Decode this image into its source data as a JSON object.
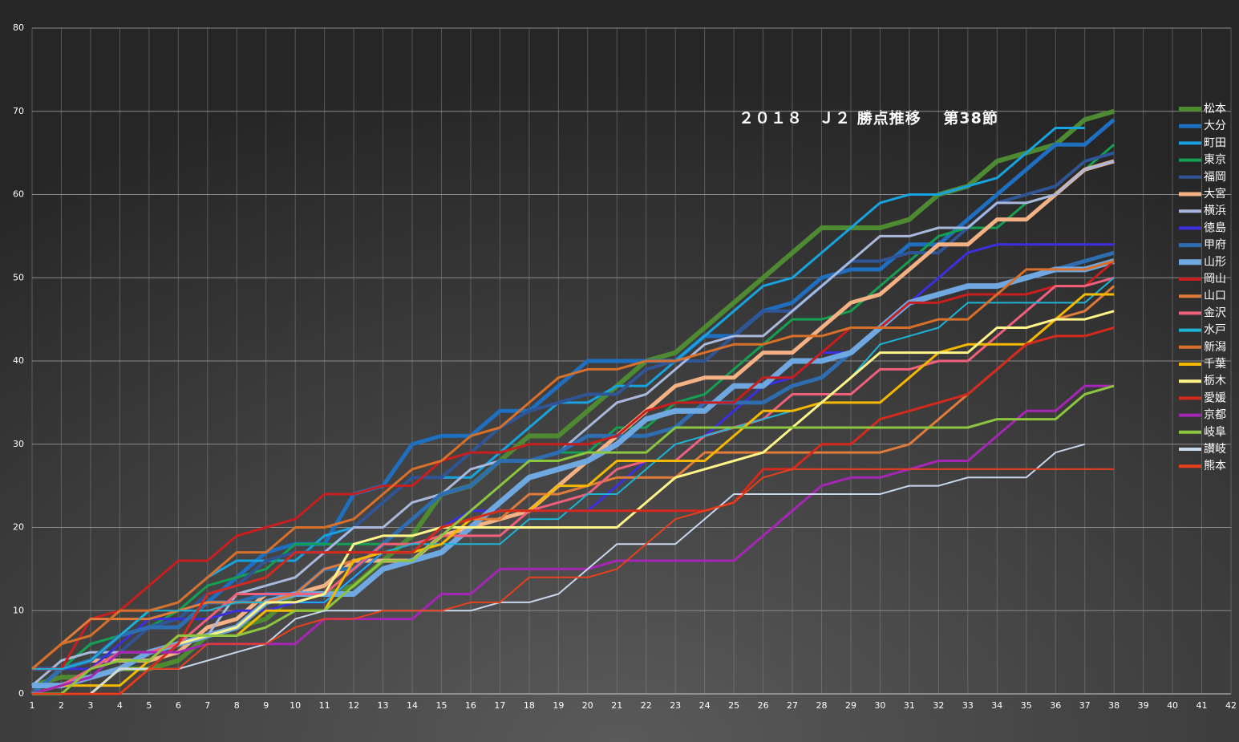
{
  "chart_data": {
    "type": "line",
    "title": "２０１８　Ｊ２ 勝点推移　 第38節",
    "x": [
      1,
      2,
      3,
      4,
      5,
      6,
      7,
      8,
      9,
      10,
      11,
      12,
      13,
      14,
      15,
      16,
      17,
      18,
      19,
      20,
      21,
      22,
      23,
      24,
      25,
      26,
      27,
      28,
      29,
      30,
      31,
      32,
      33,
      34,
      35,
      36,
      37,
      38
    ],
    "xlim": [
      1,
      42
    ],
    "xticks": [
      1,
      2,
      3,
      4,
      5,
      6,
      7,
      8,
      9,
      10,
      11,
      12,
      13,
      14,
      15,
      16,
      17,
      18,
      19,
      20,
      21,
      22,
      23,
      24,
      25,
      26,
      27,
      28,
      29,
      30,
      31,
      32,
      33,
      34,
      35,
      36,
      37,
      38,
      39,
      40,
      41,
      42
    ],
    "ylim": [
      0,
      80
    ],
    "yticks": [
      0,
      10,
      20,
      30,
      40,
      50,
      60,
      70,
      80
    ],
    "grid": true,
    "series": [
      {
        "name": "松本",
        "color": "#4e8a32",
        "width": 6,
        "values": [
          1,
          2,
          2,
          3,
          3,
          4,
          7,
          8,
          9,
          12,
          12,
          13,
          16,
          19,
          24,
          25,
          28,
          31,
          31,
          34,
          37,
          40,
          41,
          44,
          47,
          50,
          53,
          56,
          56,
          56,
          57,
          60,
          61,
          64,
          65,
          66,
          69,
          70
        ]
      },
      {
        "name": "大分",
        "color": "#1f6fc0",
        "width": 5,
        "values": [
          3,
          3,
          4,
          7,
          8,
          8,
          11,
          14,
          17,
          18,
          18,
          24,
          25,
          30,
          31,
          31,
          34,
          34,
          37,
          40,
          40,
          40,
          40,
          43,
          43,
          46,
          47,
          50,
          51,
          51,
          54,
          54,
          57,
          60,
          63,
          66,
          66,
          69
        ]
      },
      {
        "name": "町田",
        "color": "#17a3e0",
        "width": 3,
        "values": [
          0,
          3,
          6,
          7,
          10,
          11,
          14,
          16,
          16,
          16,
          19,
          20,
          23,
          26,
          26,
          26,
          29,
          32,
          35,
          35,
          37,
          37,
          40,
          43,
          46,
          49,
          50,
          53,
          56,
          59,
          60,
          60,
          61,
          62,
          65,
          68,
          68,
          null
        ]
      },
      {
        "name": "東京",
        "color": "#14a050",
        "width": 3,
        "values": [
          0,
          3,
          6,
          7,
          8,
          10,
          13,
          14,
          15,
          18,
          18,
          18,
          18,
          21,
          24,
          25,
          28,
          28,
          29,
          29,
          32,
          32,
          35,
          36,
          39,
          42,
          45,
          45,
          46,
          49,
          52,
          55,
          56,
          56,
          59,
          60,
          63,
          66
        ]
      },
      {
        "name": "福岡",
        "color": "#2f5597",
        "width": 4,
        "values": [
          3,
          3,
          4,
          5,
          8,
          9,
          12,
          13,
          16,
          17,
          17,
          20,
          23,
          26,
          26,
          29,
          32,
          34,
          35,
          36,
          36,
          39,
          40,
          40,
          43,
          46,
          46,
          49,
          52,
          52,
          53,
          53,
          56,
          59,
          60,
          61,
          64,
          65
        ]
      },
      {
        "name": "大宮",
        "color": "#f4b183",
        "width": 5,
        "values": [
          0,
          3,
          4,
          4,
          4,
          5,
          8,
          9,
          12,
          12,
          13,
          16,
          16,
          16,
          19,
          20,
          21,
          22,
          25,
          28,
          31,
          34,
          37,
          38,
          38,
          41,
          41,
          44,
          47,
          48,
          51,
          54,
          54,
          57,
          57,
          60,
          63,
          64
        ]
      },
      {
        "name": "横浜",
        "color": "#a9b8dc",
        "width": 3,
        "values": [
          1,
          4,
          5,
          5,
          5,
          6,
          7,
          12,
          13,
          14,
          17,
          20,
          20,
          23,
          24,
          27,
          28,
          28,
          29,
          32,
          35,
          36,
          39,
          42,
          43,
          43,
          46,
          49,
          52,
          55,
          55,
          56,
          56,
          59,
          59,
          60,
          63,
          64
        ]
      },
      {
        "name": "徳島",
        "color": "#3b2fe0",
        "width": 3,
        "values": [
          3,
          3,
          3,
          6,
          9,
          9,
          9,
          10,
          10,
          11,
          11,
          14,
          17,
          17,
          20,
          22,
          22,
          22,
          22,
          22,
          25,
          28,
          28,
          31,
          34,
          37,
          38,
          41,
          41,
          44,
          47,
          50,
          53,
          54,
          54,
          54,
          54,
          54
        ]
      },
      {
        "name": "甲府",
        "color": "#2e6db0",
        "width": 5,
        "values": [
          0,
          3,
          4,
          7,
          8,
          8,
          11,
          11,
          12,
          12,
          15,
          15,
          18,
          21,
          24,
          25,
          28,
          28,
          29,
          31,
          31,
          31,
          32,
          35,
          35,
          35,
          37,
          38,
          41,
          44,
          47,
          48,
          49,
          49,
          50,
          51,
          52,
          53
        ]
      },
      {
        "name": "山形",
        "color": "#6fa8e0",
        "width": 7,
        "values": [
          1,
          1,
          2,
          3,
          5,
          6,
          7,
          8,
          11,
          12,
          12,
          12,
          15,
          16,
          17,
          20,
          23,
          26,
          27,
          28,
          30,
          33,
          34,
          34,
          37,
          37,
          40,
          40,
          41,
          44,
          47,
          48,
          49,
          49,
          50,
          51,
          51,
          52
        ]
      },
      {
        "name": "岡山",
        "color": "#c81e1e",
        "width": 3,
        "values": [
          3,
          3,
          9,
          10,
          13,
          16,
          16,
          19,
          20,
          21,
          24,
          24,
          25,
          25,
          28,
          29,
          29,
          30,
          30,
          30,
          31,
          34,
          35,
          35,
          35,
          38,
          38,
          41,
          44,
          44,
          47,
          47,
          48,
          48,
          48,
          49,
          49,
          52
        ]
      },
      {
        "name": "山口",
        "color": "#e07b39",
        "width": 3,
        "values": [
          3,
          6,
          9,
          9,
          9,
          10,
          11,
          11,
          11,
          12,
          15,
          16,
          17,
          17,
          20,
          21,
          21,
          24,
          24,
          25,
          26,
          26,
          26,
          29,
          29,
          29,
          29,
          29,
          29,
          29,
          30,
          33,
          36,
          39,
          42,
          45,
          46,
          49
        ]
      },
      {
        "name": "金沢",
        "color": "#f0607a",
        "width": 3,
        "values": [
          0,
          1,
          3,
          5,
          5,
          6,
          9,
          12,
          12,
          12,
          12,
          15,
          18,
          18,
          19,
          19,
          19,
          22,
          23,
          24,
          27,
          28,
          28,
          31,
          32,
          33,
          36,
          36,
          36,
          39,
          39,
          40,
          40,
          43,
          46,
          49,
          49,
          50
        ]
      },
      {
        "name": "水戸",
        "color": "#1cb5d8",
        "width": 2,
        "values": [
          3,
          3,
          4,
          7,
          10,
          10,
          10,
          11,
          11,
          11,
          11,
          14,
          17,
          18,
          18,
          18,
          18,
          21,
          21,
          24,
          24,
          27,
          30,
          31,
          32,
          33,
          34,
          35,
          38,
          42,
          43,
          44,
          47,
          47,
          47,
          47,
          47,
          50
        ]
      },
      {
        "name": "新潟",
        "color": "#d9702a",
        "width": 3,
        "values": [
          3,
          6,
          7,
          10,
          10,
          11,
          14,
          17,
          17,
          20,
          20,
          21,
          24,
          27,
          28,
          31,
          32,
          35,
          38,
          39,
          39,
          40,
          40,
          41,
          42,
          42,
          43,
          43,
          44,
          44,
          44,
          45,
          45,
          48,
          51,
          51,
          51,
          52
        ]
      },
      {
        "name": "千葉",
        "color": "#f5b800",
        "width": 3,
        "values": [
          0,
          1,
          1,
          1,
          4,
          7,
          7,
          7,
          10,
          10,
          10,
          16,
          17,
          17,
          18,
          21,
          22,
          22,
          25,
          25,
          28,
          28,
          28,
          28,
          31,
          34,
          34,
          35,
          35,
          35,
          38,
          41,
          42,
          42,
          42,
          45,
          48,
          48
        ]
      },
      {
        "name": "栃木",
        "color": "#fff48a",
        "width": 3,
        "values": [
          0,
          0,
          0,
          3,
          3,
          6,
          7,
          8,
          11,
          11,
          12,
          18,
          19,
          19,
          20,
          20,
          20,
          20,
          20,
          20,
          20,
          23,
          26,
          27,
          28,
          29,
          32,
          35,
          38,
          41,
          41,
          41,
          41,
          44,
          44,
          45,
          45,
          46
        ]
      },
      {
        "name": "愛媛",
        "color": "#d42a1e",
        "width": 3,
        "values": [
          0,
          0,
          0,
          0,
          3,
          6,
          12,
          13,
          14,
          17,
          17,
          17,
          17,
          17,
          20,
          21,
          22,
          22,
          22,
          22,
          22,
          22,
          22,
          22,
          23,
          27,
          27,
          30,
          30,
          33,
          34,
          35,
          36,
          39,
          42,
          43,
          43,
          44
        ]
      },
      {
        "name": "京都",
        "color": "#a526b5",
        "width": 3,
        "values": [
          0,
          1,
          2,
          5,
          5,
          5,
          6,
          6,
          6,
          6,
          9,
          9,
          9,
          9,
          12,
          12,
          15,
          15,
          15,
          15,
          16,
          16,
          16,
          16,
          16,
          19,
          22,
          25,
          26,
          26,
          27,
          28,
          28,
          31,
          34,
          34,
          37,
          37
        ]
      },
      {
        "name": "岐阜",
        "color": "#8cc63f",
        "width": 3,
        "values": [
          0,
          0,
          3,
          4,
          4,
          7,
          7,
          7,
          8,
          10,
          10,
          13,
          16,
          16,
          19,
          22,
          25,
          28,
          28,
          29,
          29,
          29,
          32,
          32,
          32,
          32,
          32,
          32,
          32,
          32,
          32,
          32,
          32,
          33,
          33,
          33,
          36,
          37
        ]
      },
      {
        "name": "讃岐",
        "color": "#c8d8ee",
        "width": 2,
        "values": [
          0,
          0,
          0,
          3,
          3,
          3,
          4,
          5,
          6,
          9,
          10,
          10,
          10,
          10,
          10,
          10,
          11,
          11,
          12,
          15,
          18,
          18,
          18,
          21,
          24,
          24,
          24,
          24,
          24,
          24,
          25,
          25,
          26,
          26,
          26,
          29,
          30,
          null
        ]
      },
      {
        "name": "熊本",
        "color": "#e8401c",
        "width": 2,
        "values": [
          0,
          0,
          0,
          0,
          3,
          3,
          6,
          6,
          6,
          8,
          9,
          9,
          10,
          10,
          10,
          11,
          11,
          14,
          14,
          14,
          15,
          18,
          21,
          22,
          23,
          26,
          27,
          27,
          27,
          27,
          27,
          27,
          27,
          27,
          27,
          27,
          27,
          27
        ]
      }
    ]
  }
}
